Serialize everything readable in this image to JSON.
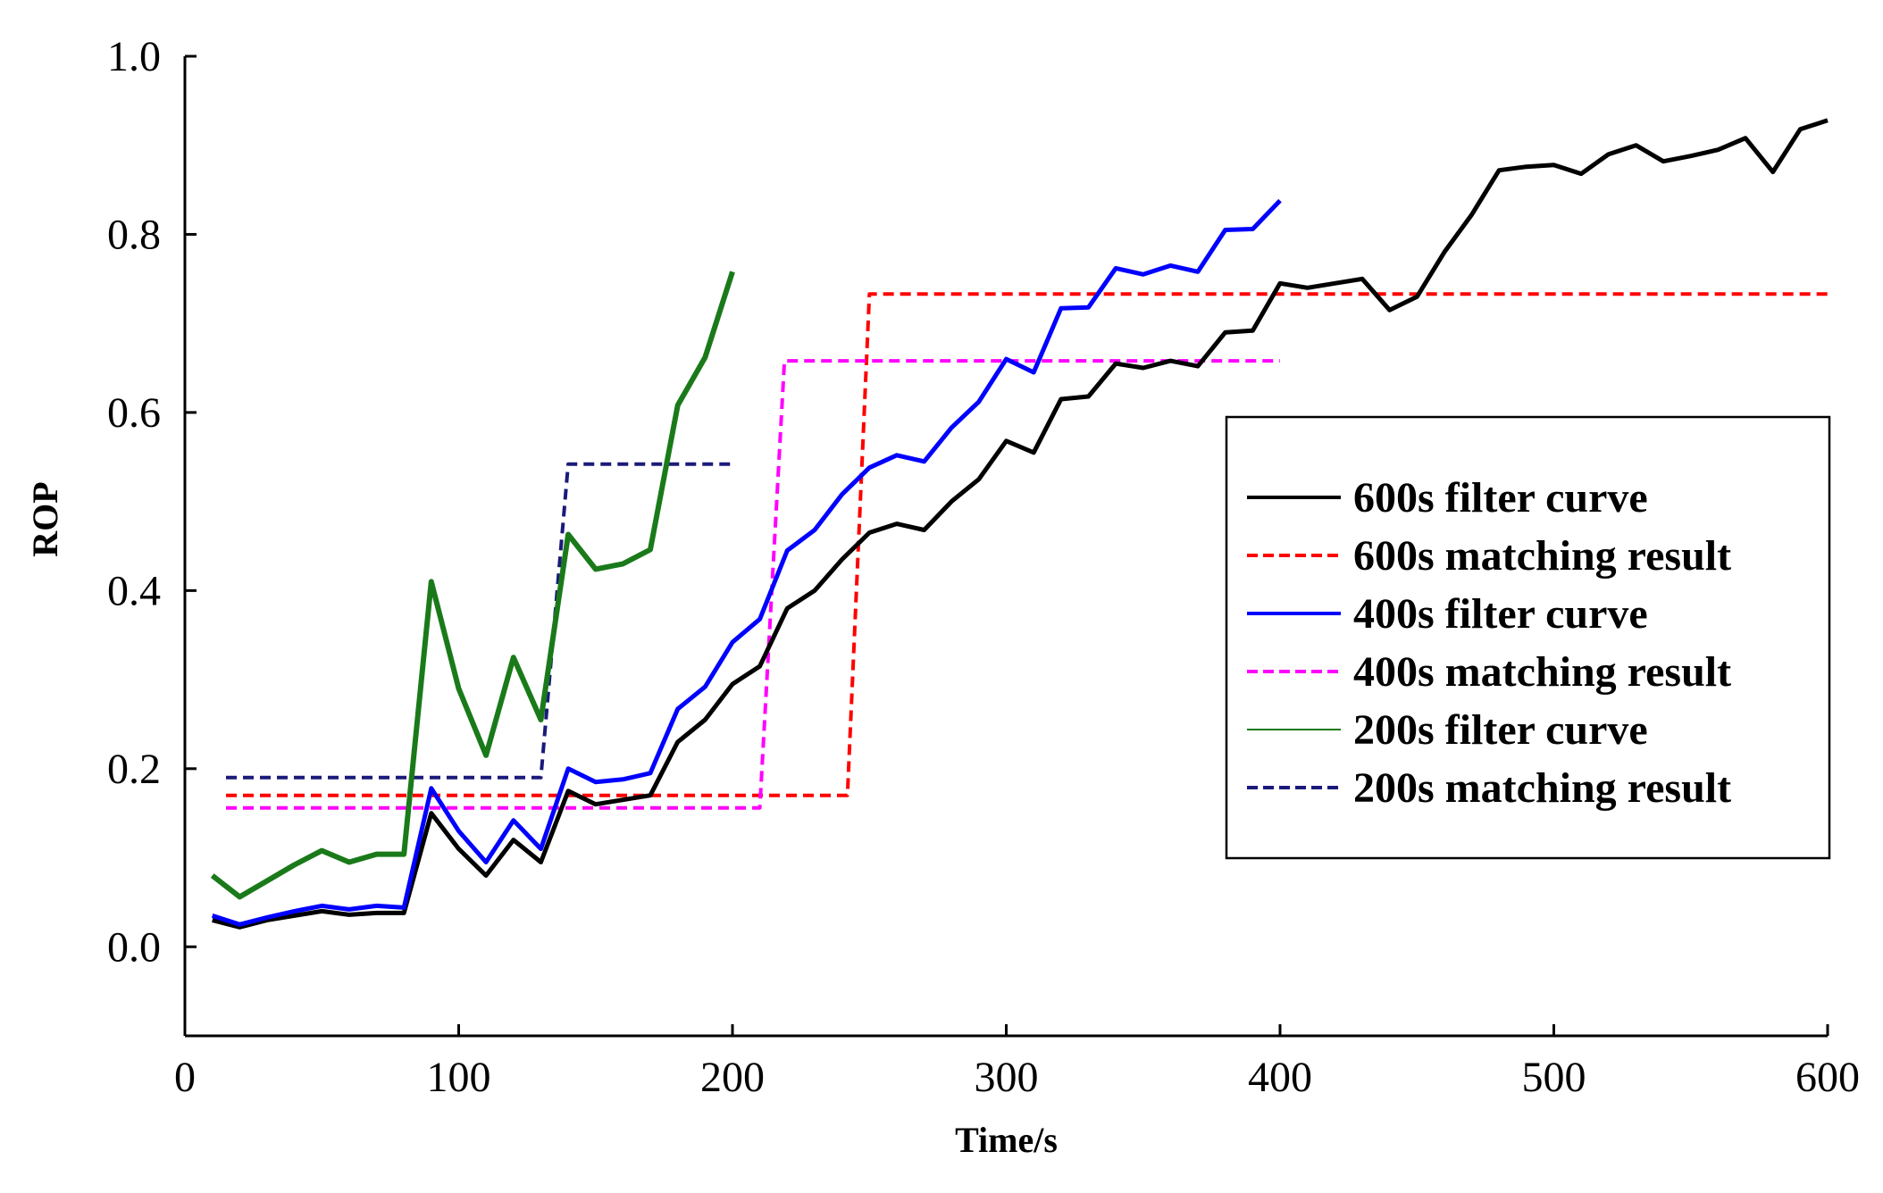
{
  "chart_data": {
    "type": "line",
    "title": "",
    "xlabel": "Time/s",
    "ylabel": "ROP",
    "xlim": [
      0,
      600
    ],
    "ylim": [
      -0.1,
      1.0
    ],
    "xticks": [
      0,
      100,
      200,
      300,
      400,
      500,
      600
    ],
    "xtick_labels": [
      "0",
      "100",
      "200",
      "300",
      "400",
      "500",
      "600"
    ],
    "yticks": [
      0.0,
      0.2,
      0.4,
      0.6,
      0.8,
      1.0
    ],
    "ytick_labels": [
      "0.0",
      "0.2",
      "0.4",
      "0.6",
      "0.8",
      "1.0"
    ],
    "grid": false,
    "legend_position": "right",
    "series": [
      {
        "name": "600s filter curve",
        "color": "#000000",
        "dash": "solid",
        "width": 5,
        "x": [
          10,
          20,
          30,
          40,
          50,
          60,
          70,
          80,
          90,
          100,
          110,
          120,
          130,
          140,
          150,
          160,
          170,
          180,
          190,
          200,
          210,
          220,
          230,
          240,
          250,
          260,
          270,
          280,
          290,
          300,
          310,
          320,
          330,
          340,
          350,
          360,
          370,
          380,
          390,
          400,
          410,
          420,
          430,
          440,
          450,
          460,
          470,
          480,
          490,
          500,
          510,
          520,
          530,
          540,
          550,
          560,
          570,
          580,
          590,
          600
        ],
        "y": [
          0.03,
          0.022,
          0.03,
          0.035,
          0.04,
          0.036,
          0.038,
          0.038,
          0.15,
          0.11,
          0.08,
          0.12,
          0.095,
          0.175,
          0.16,
          0.165,
          0.17,
          0.23,
          0.255,
          0.295,
          0.315,
          0.38,
          0.4,
          0.435,
          0.465,
          0.475,
          0.468,
          0.5,
          0.525,
          0.568,
          0.555,
          0.615,
          0.618,
          0.655,
          0.65,
          0.658,
          0.652,
          0.69,
          0.692,
          0.745,
          0.74,
          0.745,
          0.75,
          0.715,
          0.73,
          0.78,
          0.822,
          0.872,
          0.876,
          0.878,
          0.868,
          0.89,
          0.9,
          0.882,
          0.888,
          0.895,
          0.908,
          0.87,
          0.918,
          0.928
        ]
      },
      {
        "name": "600s matching result",
        "color": "#ff0000",
        "dash": "dashed",
        "width": 4,
        "x": [
          15,
          242,
          250,
          600
        ],
        "y": [
          0.17,
          0.17,
          0.733,
          0.733
        ]
      },
      {
        "name": "400s filter curve",
        "color": "#0000ff",
        "dash": "solid",
        "width": 5,
        "x": [
          10,
          20,
          30,
          40,
          50,
          60,
          70,
          80,
          90,
          100,
          110,
          120,
          130,
          140,
          150,
          160,
          170,
          180,
          190,
          200,
          210,
          220,
          230,
          240,
          250,
          260,
          270,
          280,
          290,
          300,
          310,
          320,
          330,
          340,
          350,
          360,
          370,
          380,
          390,
          400
        ],
        "y": [
          0.035,
          0.025,
          0.033,
          0.04,
          0.046,
          0.042,
          0.046,
          0.044,
          0.178,
          0.13,
          0.095,
          0.142,
          0.11,
          0.2,
          0.185,
          0.188,
          0.195,
          0.267,
          0.292,
          0.342,
          0.368,
          0.445,
          0.468,
          0.508,
          0.538,
          0.552,
          0.545,
          0.583,
          0.612,
          0.66,
          0.645,
          0.717,
          0.718,
          0.762,
          0.755,
          0.765,
          0.758,
          0.805,
          0.806,
          0.838
        ]
      },
      {
        "name": "400s matching result",
        "color": "#ff00ff",
        "dash": "dashed",
        "width": 4,
        "x": [
          15,
          210,
          219,
          400
        ],
        "y": [
          0.156,
          0.156,
          0.658,
          0.658
        ]
      },
      {
        "name": "200s filter curve",
        "color": "#1a7a1a",
        "dash": "solid",
        "width": 6,
        "legend_width": 2,
        "x": [
          10,
          20,
          30,
          40,
          50,
          60,
          70,
          80,
          90,
          100,
          110,
          120,
          130,
          140,
          150,
          160,
          170,
          180,
          190,
          200
        ],
        "y": [
          0.08,
          0.056,
          0.074,
          0.092,
          0.108,
          0.095,
          0.104,
          0.104,
          0.41,
          0.29,
          0.215,
          0.325,
          0.255,
          0.463,
          0.424,
          0.43,
          0.446,
          0.608,
          0.662,
          0.758
        ]
      },
      {
        "name": "200s matching result",
        "color": "#1a1a7a",
        "dash": "dashed",
        "width": 4,
        "x": [
          15,
          130,
          140,
          200
        ],
        "y": [
          0.19,
          0.19,
          0.542,
          0.542
        ]
      }
    ]
  }
}
